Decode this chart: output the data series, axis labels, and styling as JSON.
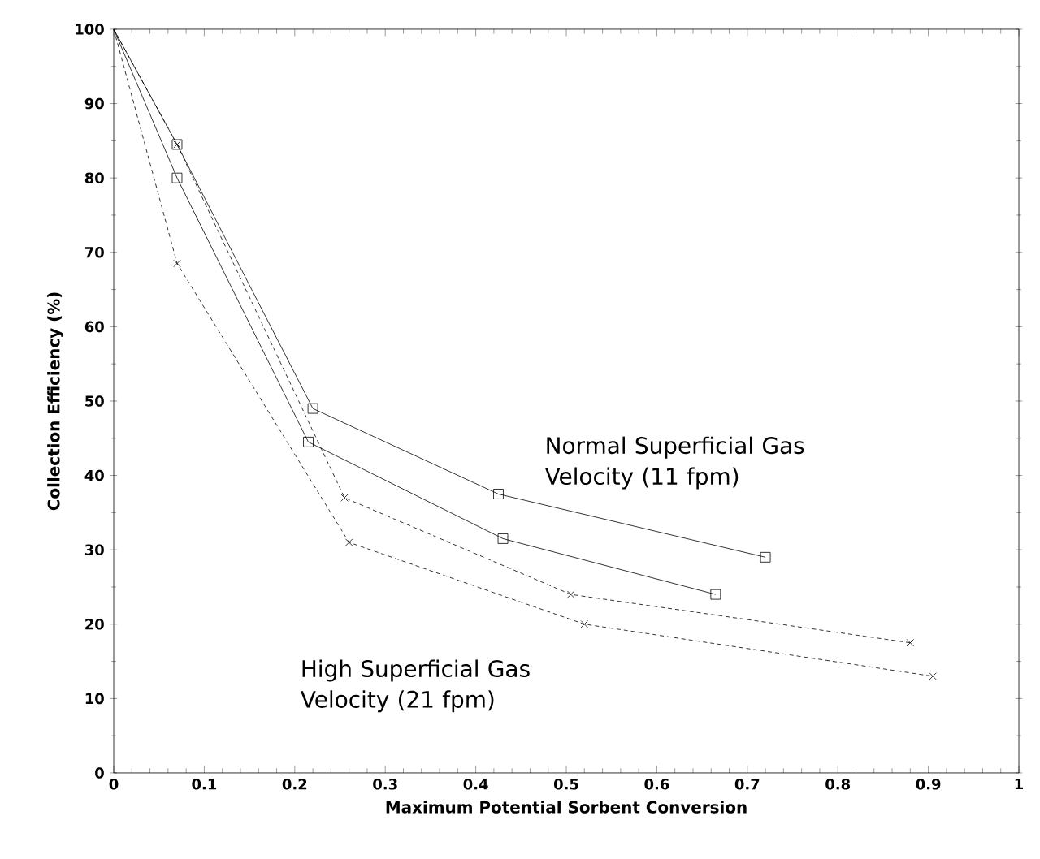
{
  "chart_data": {
    "type": "line",
    "xlabel": "Maximum Potential Sorbent Conversion",
    "ylabel": "Collection Efficiency (%)",
    "xlim": [
      0,
      1
    ],
    "ylim": [
      0,
      100
    ],
    "xticks": [
      0,
      0.1,
      0.2,
      0.3,
      0.4,
      0.5,
      0.6,
      0.7,
      0.8,
      0.9,
      1
    ],
    "yticks": [
      0,
      10,
      20,
      30,
      40,
      50,
      60,
      70,
      80,
      90,
      100
    ],
    "grid": false,
    "series": [
      {
        "color": "#000000",
        "marker": "square",
        "line_style": "solid",
        "x": [
          0,
          0.07,
          0.22,
          0.425,
          0.72
        ],
        "values": [
          100,
          84.5,
          49,
          37.5,
          29
        ]
      },
      {
        "color": "#000000",
        "marker": "square",
        "line_style": "solid",
        "x": [
          0,
          0.07,
          0.215,
          0.43,
          0.665
        ],
        "values": [
          100,
          80,
          44.5,
          31.5,
          24
        ]
      },
      {
        "color": "#000000",
        "marker": "cross",
        "line_style": "dashed",
        "x": [
          0,
          0.07,
          0.255,
          0.505,
          0.88
        ],
        "values": [
          100,
          84.5,
          37,
          24,
          17.5
        ]
      },
      {
        "color": "#000000",
        "marker": "cross",
        "line_style": "dashed",
        "x": [
          0,
          0.07,
          0.26,
          0.52,
          0.905
        ],
        "values": [
          100,
          68.5,
          31,
          20,
          13
        ]
      }
    ],
    "annotations": [
      "Normal Superficial Gas Velocity (11 fpm)",
      "High Superficial Gas Velocity (21 fpm)"
    ]
  }
}
